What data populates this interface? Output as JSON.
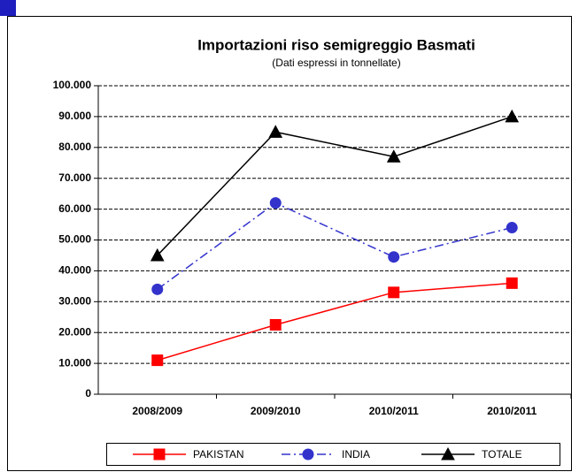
{
  "chart_data": {
    "type": "line",
    "title": "Importazioni riso semigreggio Basmati",
    "subtitle": "(Dati espressi in tonnellate)",
    "categories": [
      "2008/2009",
      "2009/2010",
      "2010/2011",
      "2010/2011"
    ],
    "series": [
      {
        "name": "PAKISTAN",
        "color": "#ff0000",
        "marker": "square",
        "dash": "solid",
        "values": [
          11000,
          22500,
          33000,
          36000
        ]
      },
      {
        "name": "INDIA",
        "color": "#3333cc",
        "marker": "circle",
        "dash": "dashdot",
        "values": [
          34000,
          62000,
          44500,
          54000
        ]
      },
      {
        "name": "TOTALE",
        "color": "#000000",
        "marker": "triangle",
        "dash": "solid",
        "values": [
          45000,
          85000,
          77000,
          90000
        ]
      }
    ],
    "ylim": [
      0,
      100000
    ],
    "yticks": [
      0,
      {
        "value": 10000,
        "label": "10.000"
      },
      {
        "value": 20000,
        "label": "20.000"
      },
      {
        "value": 30000,
        "label": "30.000"
      },
      {
        "value": 40000,
        "label": "40.000"
      },
      {
        "value": 50000,
        "label": "50.000"
      },
      {
        "value": 60000,
        "label": "60.000"
      },
      {
        "value": 70000,
        "label": "70.000"
      },
      {
        "value": 80000,
        "label": "80.000"
      },
      {
        "value": 90000,
        "label": "90.000"
      },
      {
        "value": 100000,
        "label": "100.000"
      }
    ],
    "grid": true,
    "legend": "bottom"
  }
}
